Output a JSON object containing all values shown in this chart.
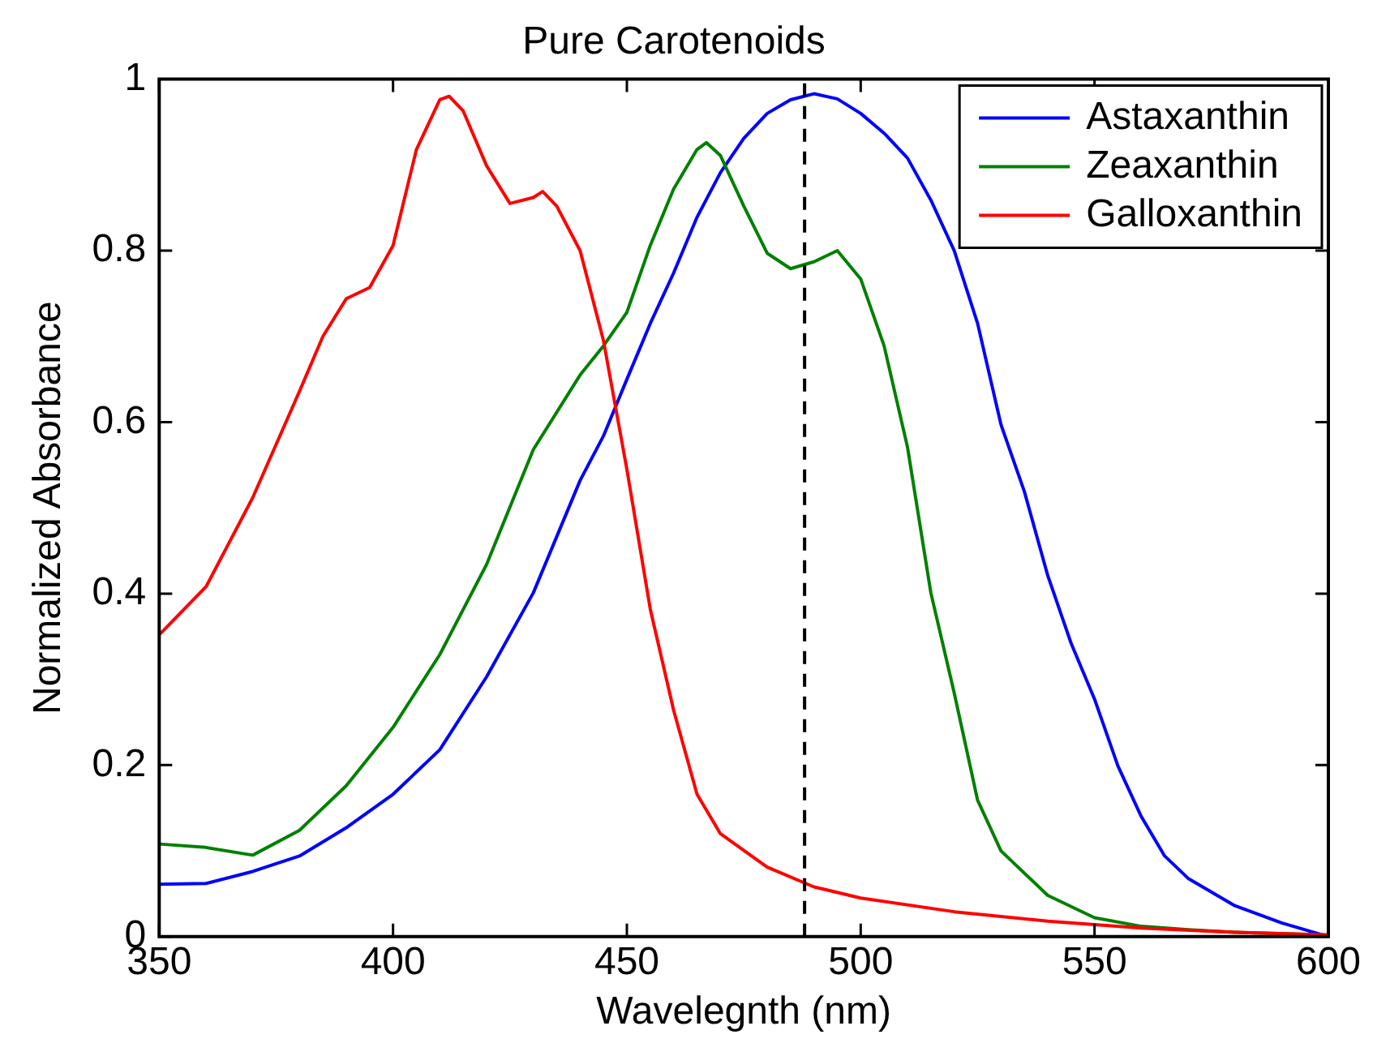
{
  "chart_data": {
    "type": "line",
    "title": "Pure Carotenoids",
    "xlabel": "Wavelegnth (nm)",
    "ylabel": "Normalized Absorbance",
    "xlim": [
      350,
      600
    ],
    "xticks": [
      350,
      400,
      450,
      500,
      550,
      600
    ],
    "ylim": [
      0,
      1
    ],
    "yticks": [
      0,
      0.2,
      0.4,
      0.6,
      0.8,
      1
    ],
    "grid": false,
    "legend": "top right",
    "marker": "none",
    "line_style": "solid",
    "ref_lines": [
      {
        "axis": "x",
        "value": 488,
        "color": "#000000",
        "line_style": "dashed"
      }
    ],
    "series": [
      {
        "name": "Astaxanthin",
        "color": "#0000ff",
        "x": [
          350,
          360,
          370,
          380,
          390,
          400,
          410,
          420,
          430,
          440,
          445,
          450,
          455,
          460,
          465,
          470,
          475,
          480,
          485,
          490,
          495,
          500,
          505,
          510,
          515,
          520,
          525,
          530,
          535,
          540,
          545,
          550,
          555,
          560,
          565,
          570,
          580,
          590,
          600
        ],
        "values": [
          0.061,
          0.062,
          0.076,
          0.094,
          0.127,
          0.166,
          0.218,
          0.303,
          0.401,
          0.532,
          0.584,
          0.65,
          0.715,
          0.774,
          0.839,
          0.891,
          0.931,
          0.96,
          0.976,
          0.983,
          0.977,
          0.96,
          0.937,
          0.908,
          0.859,
          0.8,
          0.715,
          0.597,
          0.519,
          0.421,
          0.342,
          0.277,
          0.199,
          0.14,
          0.094,
          0.068,
          0.036,
          0.016,
          0.0
        ]
      },
      {
        "name": "Zeaxanthin",
        "color": "#008000",
        "x": [
          350,
          360,
          370,
          380,
          390,
          400,
          410,
          420,
          430,
          440,
          445,
          450,
          455,
          460,
          465,
          467,
          470,
          475,
          480,
          485,
          490,
          495,
          500,
          505,
          510,
          515,
          520,
          525,
          530,
          540,
          550,
          560,
          570,
          580,
          600
        ],
        "values": [
          0.108,
          0.104,
          0.095,
          0.124,
          0.176,
          0.244,
          0.329,
          0.434,
          0.568,
          0.655,
          0.689,
          0.728,
          0.806,
          0.872,
          0.918,
          0.926,
          0.911,
          0.852,
          0.797,
          0.779,
          0.787,
          0.8,
          0.767,
          0.689,
          0.571,
          0.401,
          0.284,
          0.159,
          0.1,
          0.048,
          0.022,
          0.012,
          0.008,
          0.005,
          0.002
        ]
      },
      {
        "name": "Galloxanthin",
        "color": "#ff0000",
        "x": [
          350,
          360,
          370,
          380,
          385,
          390,
          395,
          400,
          405,
          410,
          412,
          415,
          420,
          425,
          430,
          432,
          435,
          440,
          445,
          450,
          455,
          460,
          465,
          470,
          480,
          490,
          500,
          520,
          540,
          560,
          580,
          600
        ],
        "values": [
          0.352,
          0.408,
          0.512,
          0.636,
          0.7,
          0.744,
          0.757,
          0.806,
          0.918,
          0.976,
          0.98,
          0.963,
          0.899,
          0.855,
          0.862,
          0.869,
          0.852,
          0.8,
          0.695,
          0.545,
          0.382,
          0.264,
          0.166,
          0.12,
          0.081,
          0.058,
          0.045,
          0.029,
          0.018,
          0.01,
          0.005,
          0.002
        ]
      }
    ]
  }
}
